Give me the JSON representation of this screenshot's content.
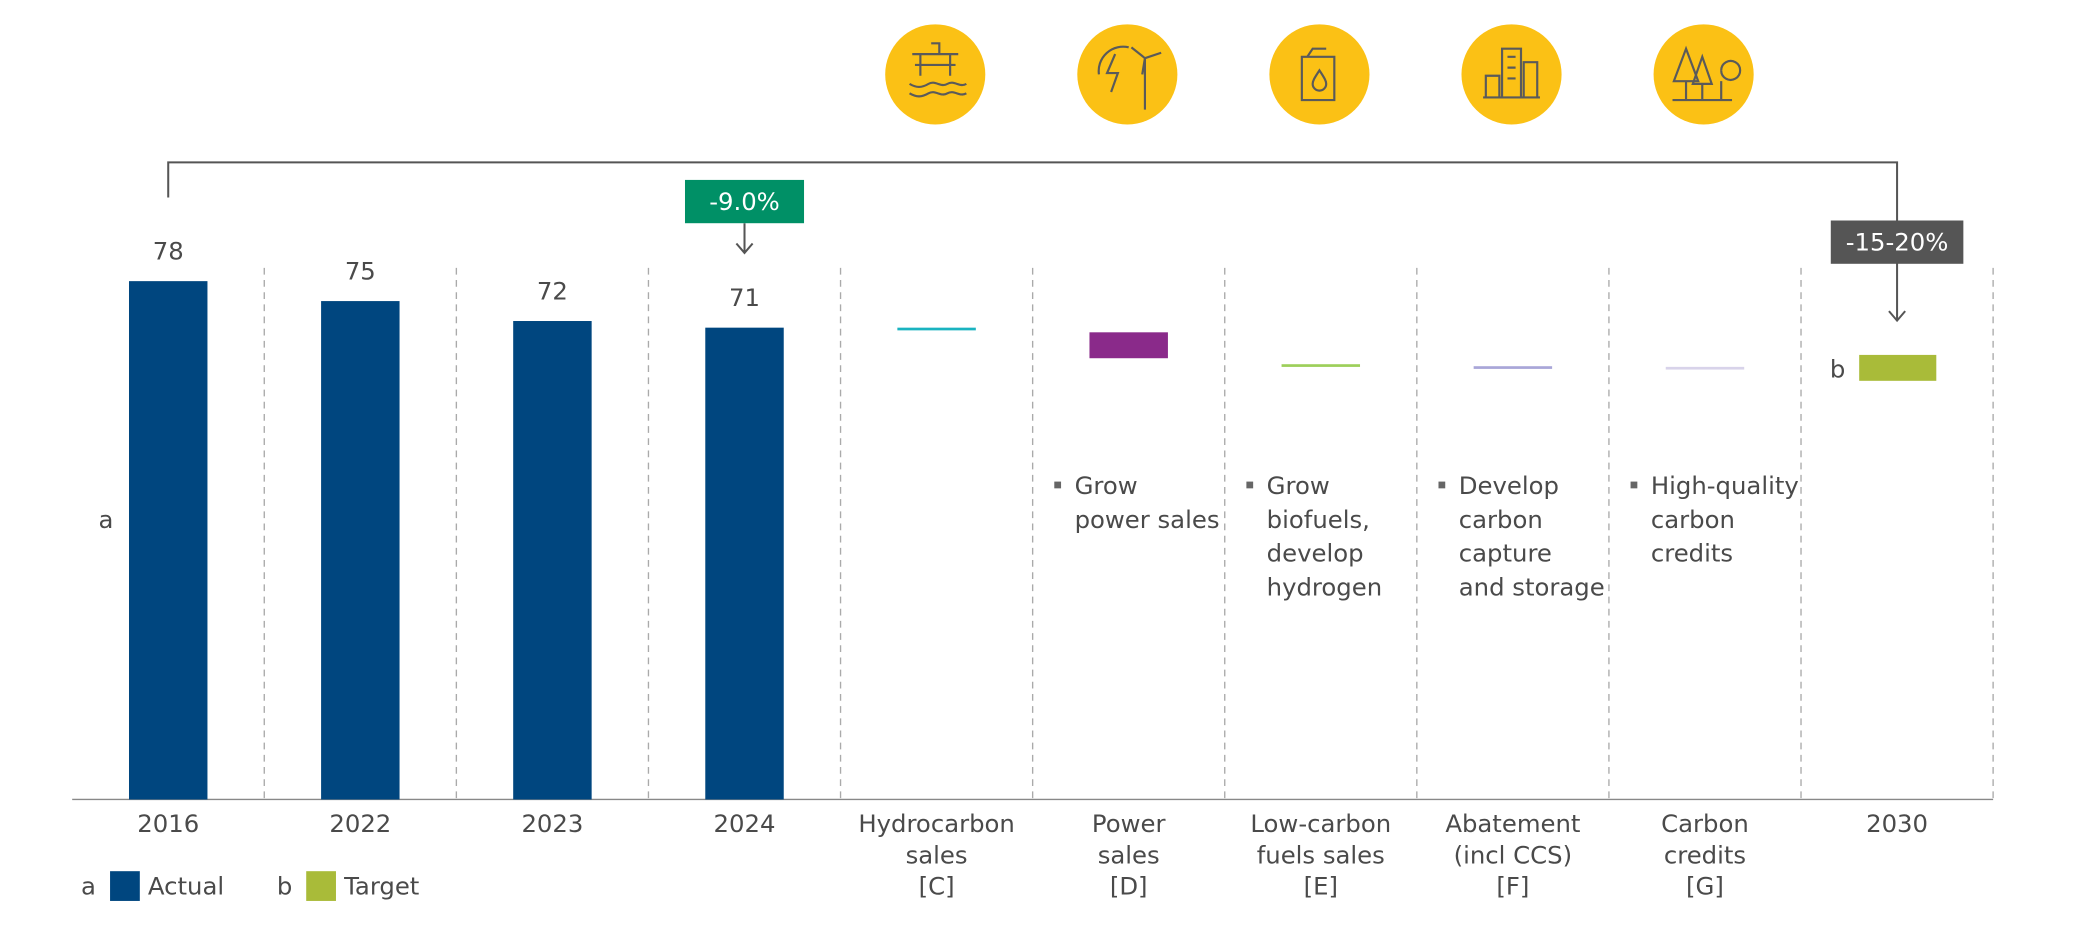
{
  "chart_data": {
    "type": "waterfall",
    "bar_color": "#00467f",
    "bars": {
      "categories": [
        "2016",
        "2022",
        "2023",
        "2024"
      ],
      "values": [
        78,
        75,
        72,
        71
      ]
    },
    "steps": [
      {
        "label": [
          "Hydrocarbon",
          "sales"
        ],
        "code": "[C]",
        "from": 71,
        "to": 70.7,
        "color": "#1ab3c0"
      },
      {
        "label": [
          "Power",
          "sales"
        ],
        "code": "[D]",
        "from": 70.3,
        "to": 66.4,
        "color": "#8a2a8a",
        "note": [
          "Grow",
          "power sales"
        ]
      },
      {
        "label": [
          "Low-carbon",
          "fuels sales"
        ],
        "code": "[E]",
        "from": 65.5,
        "to": 65.3,
        "color": "#9dcf5a",
        "note": [
          "Grow",
          "biofuels,",
          "develop",
          "hydrogen"
        ]
      },
      {
        "label": [
          "Abatement",
          "(incl CCS)"
        ],
        "code": "[F]",
        "from": 65.2,
        "to": 65.1,
        "color": "#a9a6d8",
        "note": [
          "Develop",
          "carbon",
          "capture",
          "and storage"
        ]
      },
      {
        "label": [
          "Carbon",
          "credits"
        ],
        "code": "[G]",
        "from": 65.1,
        "to": 65.0,
        "color": "#d8d3ea",
        "note": [
          "High-quality",
          "carbon",
          "credits"
        ]
      }
    ],
    "target": {
      "category": "2030",
      "from": 66.9,
      "to": 63.0,
      "color": "#a9bb39",
      "marker": "b",
      "callout": "-15-20%"
    },
    "callout_2024": "-9.0%",
    "axis_marker": "a",
    "legend": [
      {
        "marker": "a",
        "name": "Actual",
        "color": "#00467f"
      },
      {
        "marker": "b",
        "name": "Target",
        "color": "#a9bb39"
      }
    ],
    "ylim": [
      0,
      80
    ]
  }
}
